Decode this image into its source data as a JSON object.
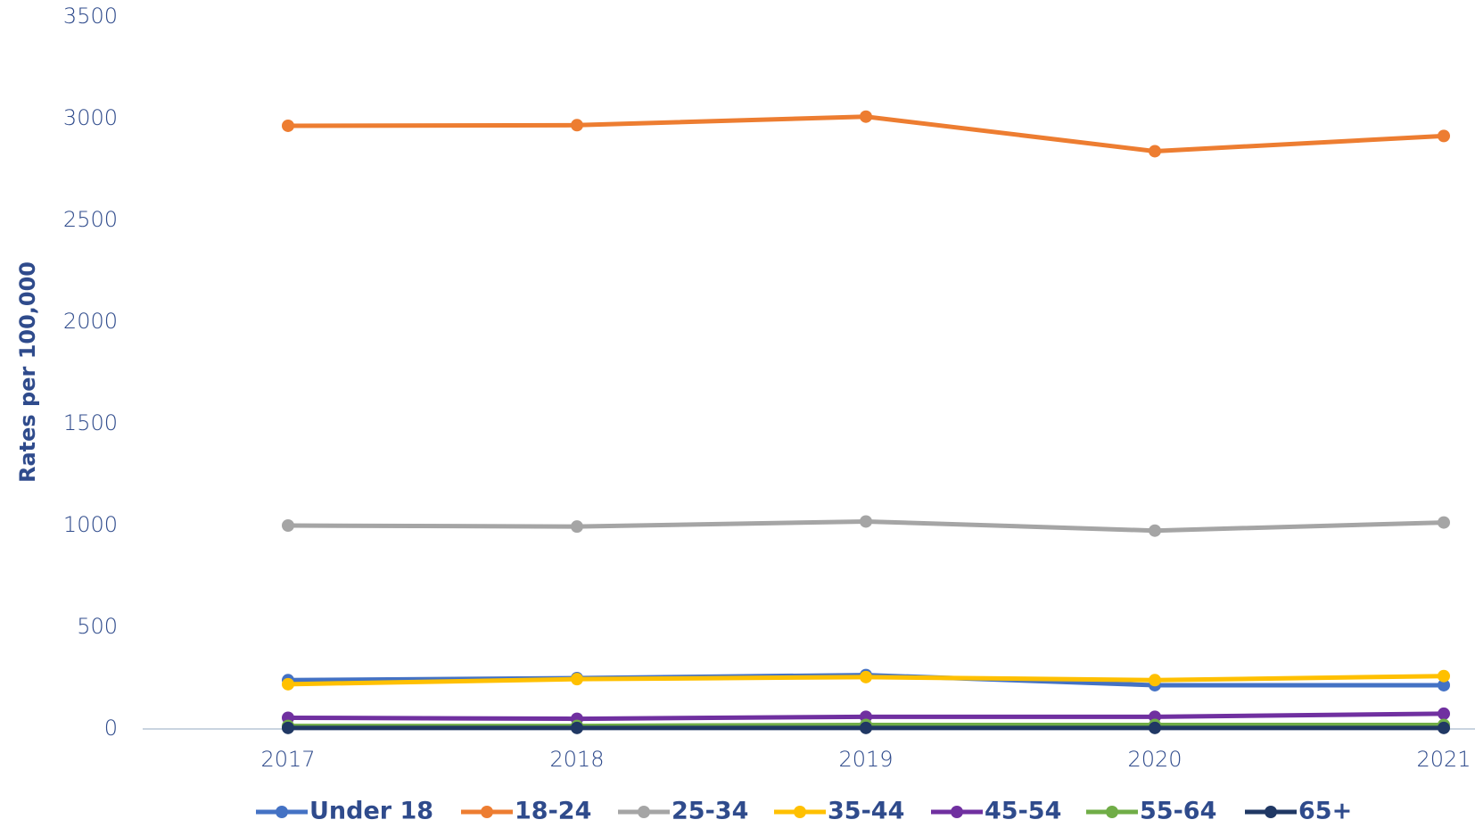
{
  "chart_data": {
    "type": "line",
    "y_label": "Rates per 100,000",
    "categories": [
      "2017",
      "2018",
      "2019",
      "2020",
      "2021"
    ],
    "series": [
      {
        "name": "Under 18",
        "color": "#4472c4",
        "values": [
          240,
          250,
          265,
          215,
          215
        ]
      },
      {
        "name": "18-24",
        "color": "#ed7d31",
        "values": [
          2965,
          2968,
          3010,
          2840,
          2915
        ]
      },
      {
        "name": "25-34",
        "color": "#a5a5a5",
        "values": [
          1000,
          995,
          1020,
          975,
          1015
        ]
      },
      {
        "name": "35-44",
        "color": "#ffc000",
        "values": [
          220,
          245,
          255,
          240,
          260
        ]
      },
      {
        "name": "45-54",
        "color": "#7030a0",
        "values": [
          55,
          50,
          60,
          60,
          75
        ]
      },
      {
        "name": "55-64",
        "color": "#70ad47",
        "values": [
          15,
          15,
          20,
          20,
          20
        ]
      },
      {
        "name": "65+",
        "color": "#203864",
        "values": [
          5,
          5,
          5,
          5,
          5
        ]
      }
    ],
    "ylim": [
      0,
      3500
    ],
    "yticks": [
      0,
      500,
      1000,
      1500,
      2000,
      2500,
      3000,
      3500
    ],
    "grid": false,
    "legend": "bottom"
  }
}
